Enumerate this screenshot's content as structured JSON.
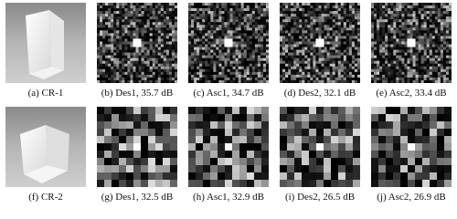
{
  "figure": {
    "rows": [
      [
        {
          "caption": "(a) CR-1"
        },
        {
          "caption": "(b) Des1, 35.7 dB"
        },
        {
          "caption": "(c) Asc1, 34.7 dB"
        },
        {
          "caption": "(d) Des2, 32.1 dB"
        },
        {
          "caption": "(e) Asc2, 33.4 dB"
        }
      ],
      [
        {
          "caption": "(f) CR-2"
        },
        {
          "caption": "(g) Des1, 32.5 dB"
        },
        {
          "caption": "(h) Asc1, 32.9 dB"
        },
        {
          "caption": "(i) Des2, 26.5 dB"
        },
        {
          "caption": "(j) Asc2, 26.9 dB"
        }
      ]
    ]
  }
}
